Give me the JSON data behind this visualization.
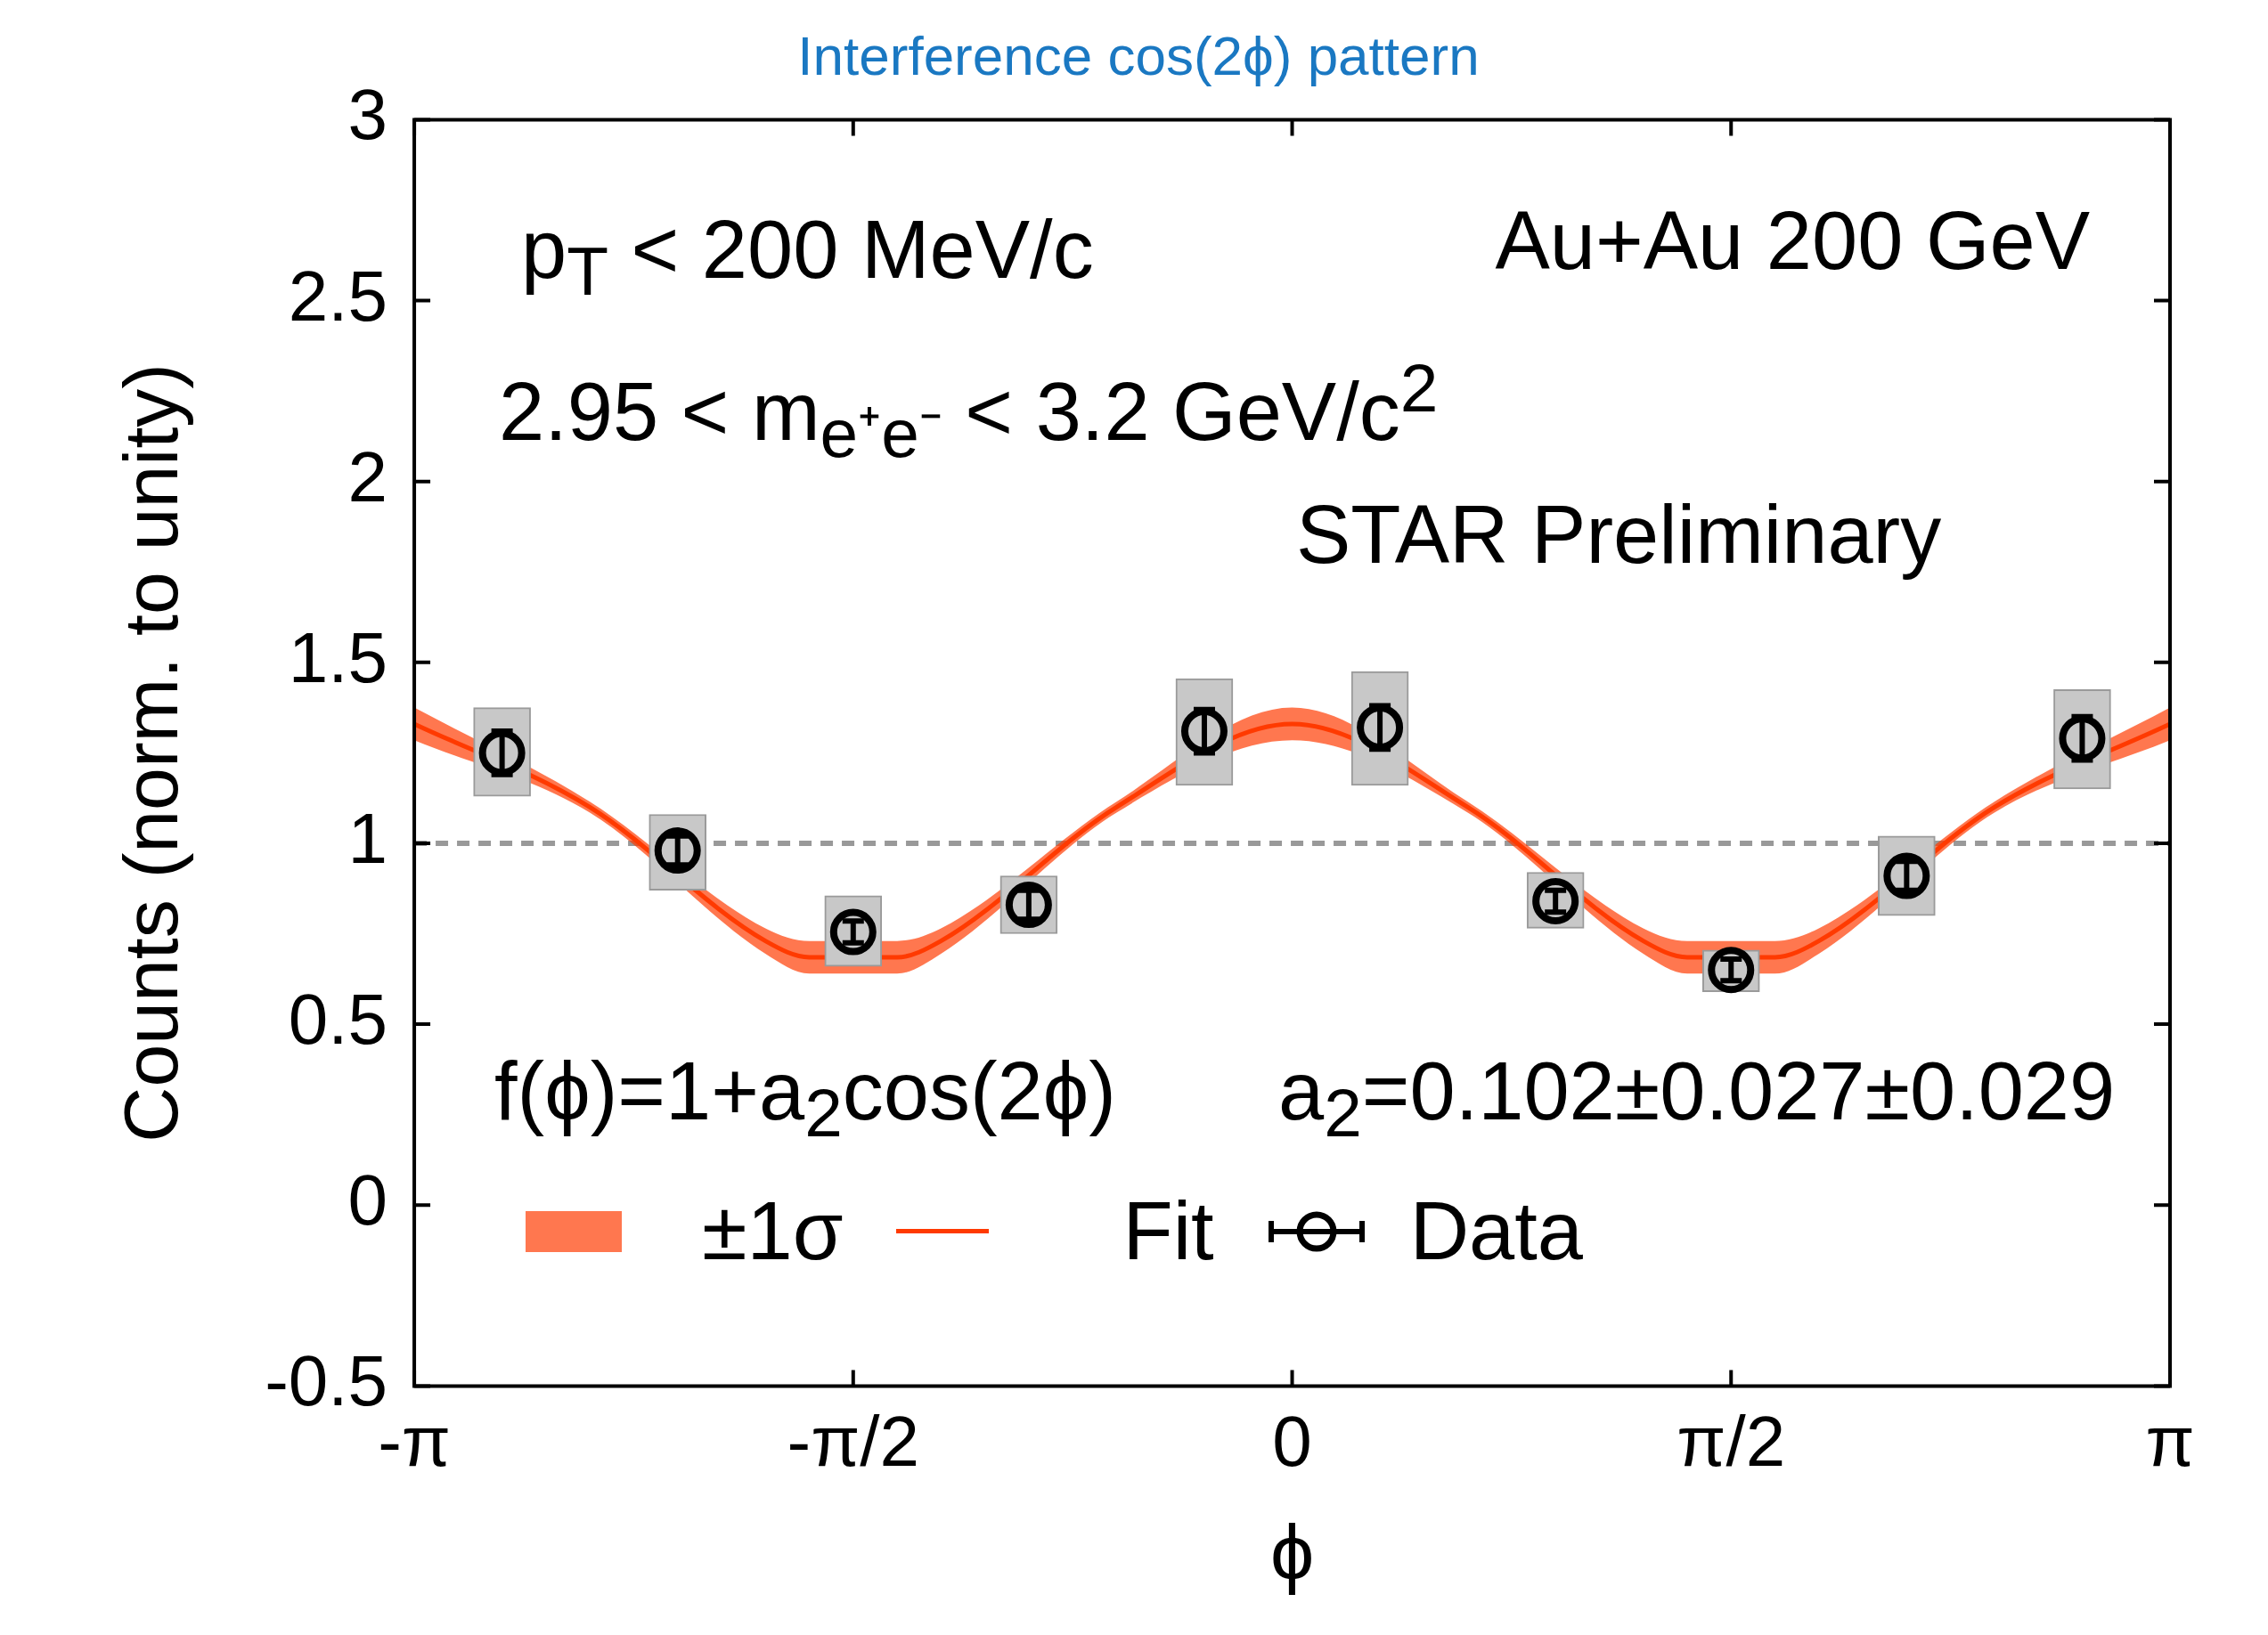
{
  "chart_data": {
    "type": "scatter",
    "title": "Interference cos(2ϕ) pattern",
    "xlabel": "ϕ",
    "ylabel": "Counts (norm. to unity)",
    "xlim": [
      -3.1416,
      3.1416
    ],
    "xticks": [
      {
        "value": -3.1416,
        "label": "-π"
      },
      {
        "value": -1.5708,
        "label": "-π/2"
      },
      0,
      {
        "value": 1.5708,
        "label": "π/2"
      },
      {
        "value": 3.1416,
        "label": "π"
      }
    ],
    "ylim": [
      -0.5,
      3
    ],
    "yticks": [
      -0.5,
      0,
      0.5,
      1,
      1.5,
      2,
      2.5,
      3
    ],
    "grid": false,
    "legend": "bottom left",
    "line_style": "solid",
    "ref_lines": [
      {
        "axis": "y",
        "value": 1,
        "color": "#999999",
        "line_style": "dashed"
      }
    ],
    "annotations": [
      "p$_{T}$ < 200 MeV/c",
      "Au+Au 200 GeV",
      "2.95 < m$_{e⁺e⁻}$ < 3.2 GeV/c$^{2}$",
      "STAR Preliminary",
      "f(ϕ)=1+a$_{2}$cos(2ϕ)",
      "a$_{2}$=0.102±0.027±0.029",
      "±1σ"
    ],
    "series": [
      {
        "name": "Fit",
        "type": "line",
        "color": "#ff3a00",
        "marker": "none",
        "x": [
          -3.1416,
          -2.5133,
          -1.885,
          -1.7279,
          -1.4137,
          -1.2566,
          -0.6283,
          0,
          0.6283,
          1.2566,
          1.4137,
          1.7279,
          1.885,
          2.5133,
          3.1416
        ],
        "values": [
          1.33,
          1.1,
          0.73,
          0.685,
          0.685,
          0.73,
          1.1,
          1.33,
          1.1,
          0.73,
          0.685,
          0.685,
          0.73,
          1.1,
          1.33
        ],
        "lower": [
          1.285,
          1.085,
          0.695,
          0.64,
          0.64,
          0.695,
          1.085,
          1.285,
          1.085,
          0.695,
          0.64,
          0.64,
          0.695,
          1.085,
          1.285
        ],
        "upper": [
          1.375,
          1.115,
          0.765,
          0.73,
          0.73,
          0.765,
          1.115,
          1.375,
          1.115,
          0.765,
          0.73,
          0.73,
          0.765,
          1.115,
          1.375
        ]
      },
      {
        "type": "bar",
        "color": "#c8c8c8",
        "x": [
          -2.8274,
          -2.1991,
          -1.5708,
          -0.9425,
          -0.3142,
          0.3142,
          0.9425,
          1.5708,
          2.1991,
          2.8274
        ],
        "base": [
          1.13,
          0.87,
          0.66,
          0.75,
          1.16,
          1.16,
          0.765,
          0.59,
          0.8,
          1.15
        ],
        "values": [
          0.245,
          0.21,
          0.195,
          0.16,
          0.295,
          0.315,
          0.155,
          0.115,
          0.22,
          0.275
        ]
      },
      {
        "name": "Data",
        "color": "#000000",
        "marker": "circle",
        "x": [
          -2.8274,
          -2.1991,
          -1.5708,
          -0.9425,
          -0.3142,
          0.3142,
          0.9425,
          1.5708,
          2.1991,
          2.8274
        ],
        "values": [
          1.25,
          0.98,
          0.755,
          0.83,
          1.31,
          1.32,
          0.84,
          0.65,
          0.91,
          1.29
        ],
        "errors": [
          0.06,
          0.04,
          0.03,
          0.04,
          0.06,
          0.06,
          0.03,
          0.03,
          0.04,
          0.06
        ]
      }
    ]
  }
}
